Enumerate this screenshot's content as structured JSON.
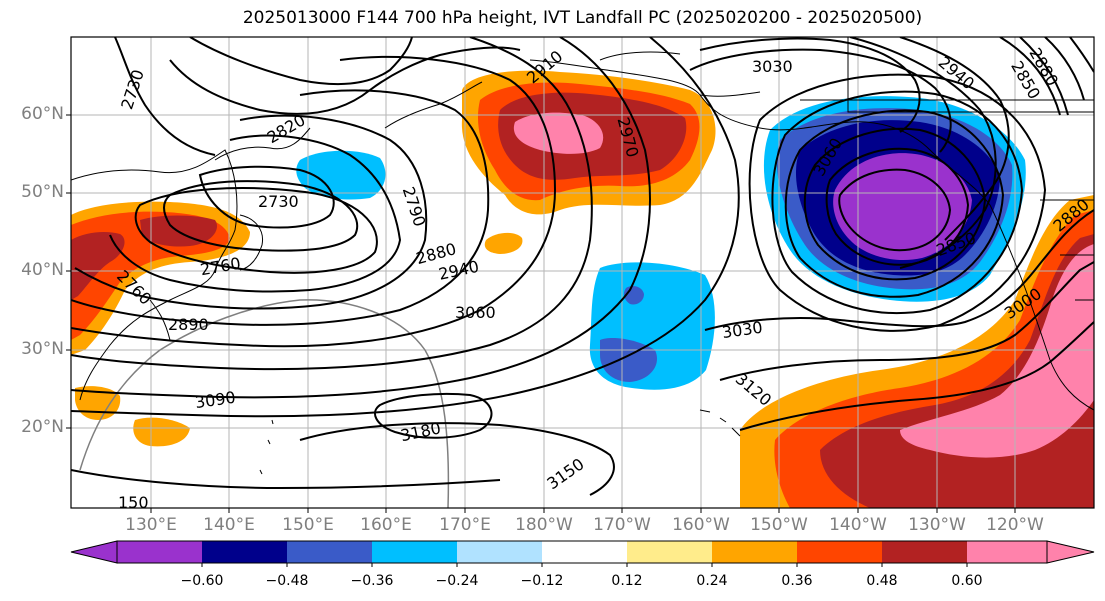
{
  "title": "2025013000 F144 700 hPa height, IVT Landfall PC (2025020200 - 2025020500)",
  "lat_labels": [
    "60°N",
    "50°N",
    "40°N",
    "30°N",
    "20°N"
  ],
  "lon_labels": [
    "130°E",
    "140°E",
    "150°E",
    "160°E",
    "170°E",
    "180°W",
    "170°W",
    "160°W",
    "150°W",
    "140°W",
    "130°W",
    "120°W"
  ],
  "contour_labels": [
    "2730",
    "2820",
    "2910",
    "2970",
    "3030",
    "2940",
    "2850",
    "3060",
    "2790",
    "2730",
    "2760",
    "2760",
    "2880",
    "2940",
    "2890",
    "3060",
    "3030",
    "3090",
    "3180",
    "3150",
    "3120",
    "3000",
    "2880",
    "150",
    "2850",
    "2880"
  ],
  "colorbar": {
    "ticks": [
      "−0.60",
      "−0.48",
      "−0.36",
      "−0.24",
      "−0.12",
      "0.12",
      "0.24",
      "0.36",
      "0.48",
      "0.60"
    ],
    "colors": [
      "#9a32cd",
      "#00008b",
      "#3a5bc8",
      "#00bfff",
      "#b0e2ff",
      "#ffffff",
      "#ffec8b",
      "#ffa500",
      "#ff4500",
      "#b22222",
      "#ff82ab"
    ]
  },
  "colors": {
    "neg_strong": "#9a32cd",
    "neg_navy": "#00008b",
    "neg_royal": "#3a5bc8",
    "neg_sky": "#00bfff",
    "pos_orange": "#ffa500",
    "pos_orangered": "#ff4500",
    "pos_firebrick": "#b22222",
    "pos_pink": "#ff82ab",
    "grid": "#b5b5b5",
    "contour": "#000000",
    "axis_label": "#7f7f7f"
  }
}
